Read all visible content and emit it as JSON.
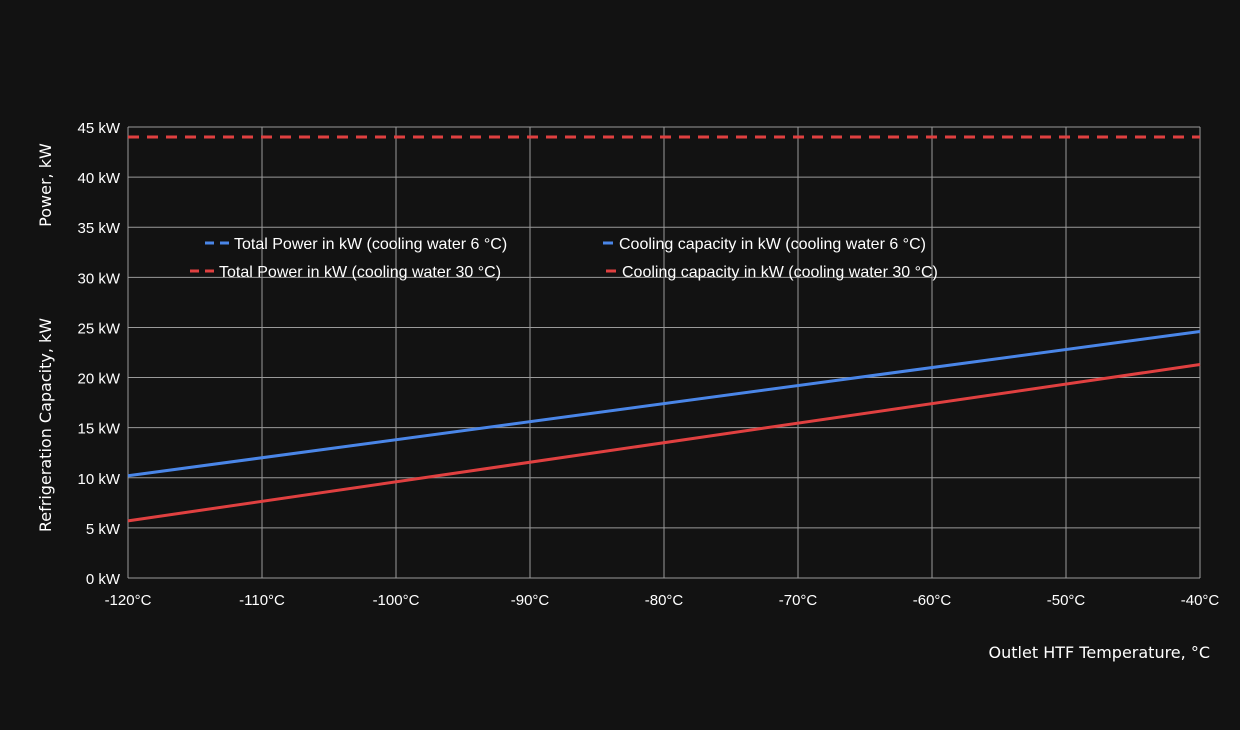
{
  "chart_data": {
    "type": "line",
    "title": "",
    "xlabel": "Outlet HTF Temperature, °C",
    "ylabel_top": "Power, kW",
    "ylabel_bottom": "Refrigeration Capacity, kW",
    "xlim": [
      -120,
      -40
    ],
    "ylim": [
      0,
      45
    ],
    "grid": true,
    "legend_position": "top-left-inside",
    "x_ticks": [
      -120,
      -110,
      -100,
      -90,
      -80,
      -70,
      -60,
      -50,
      -40
    ],
    "x_tick_labels": [
      "-120°C",
      "-110°C",
      "-100°C",
      "-90°C",
      "-80°C",
      "-70°C",
      "-60°C",
      "-50°C",
      "-40°C"
    ],
    "y_ticks": [
      0,
      5,
      10,
      15,
      20,
      25,
      30,
      35,
      40,
      45
    ],
    "y_tick_labels": [
      "0 kW",
      "5 kW",
      "10 kW",
      "15 kW",
      "20 kW",
      "25 kW",
      "30 kW",
      "35 kW",
      "40 kW",
      "45 kW"
    ],
    "series": [
      {
        "name": "Total Power in kW (cooling water 6 °C)",
        "color": "#4a86e8",
        "dashed": true,
        "x": [
          -120,
          -40
        ],
        "values": [
          44,
          44
        ]
      },
      {
        "name": "Cooling capacity in kW  (cooling water 6 °C)",
        "color": "#4a86e8",
        "dashed": false,
        "x": [
          -120,
          -40
        ],
        "values": [
          10.2,
          24.6
        ]
      },
      {
        "name": "Total Power in kW  (cooling water 30 °C)",
        "color": "#e04040",
        "dashed": true,
        "x": [
          -120,
          -40
        ],
        "values": [
          44,
          44
        ]
      },
      {
        "name": "Cooling capacity in kW  (cooling water 30 °C)",
        "color": "#e04040",
        "dashed": false,
        "x": [
          -120,
          -40
        ],
        "values": [
          5.7,
          21.3
        ]
      }
    ]
  }
}
